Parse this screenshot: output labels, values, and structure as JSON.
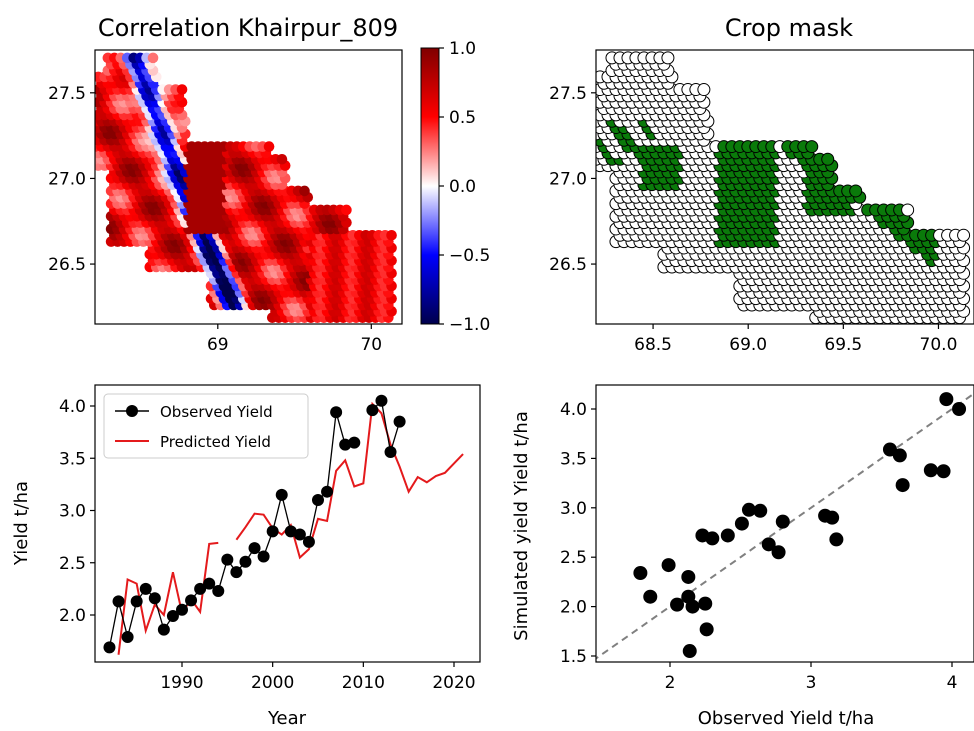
{
  "figure": {
    "panels": [
      {
        "id": "correlation",
        "title": "Correlation Khairpur_809",
        "xticks": [
          "69",
          "70"
        ],
        "yticks": [
          "27.5",
          "27.0",
          "26.5"
        ],
        "colorbar_ticks": [
          "1.0",
          "0.5",
          "0.0",
          "−0.5",
          "−1.0"
        ]
      },
      {
        "id": "crop-mask",
        "title": "Crop mask",
        "xticks": [
          "68.5",
          "69.0",
          "69.5",
          "70.0"
        ],
        "yticks": [
          "27.5",
          "27.0",
          "26.5"
        ]
      },
      {
        "id": "yield-timeseries",
        "xlabel": "Year",
        "ylabel": "Yield t/ha",
        "xticks": [
          "1990",
          "2000",
          "2010",
          "2020"
        ],
        "yticks": [
          "4.0",
          "3.5",
          "3.0",
          "2.5",
          "2.0"
        ],
        "legend": [
          "Observed Yield",
          "Predicted Yield"
        ]
      },
      {
        "id": "scatter",
        "xlabel": "Observed Yield t/ha",
        "ylabel": "Simulated yield Yield t/ha",
        "xticks": [
          "2",
          "3",
          "4"
        ],
        "yticks": [
          "4.0",
          "3.5",
          "3.0",
          "2.5",
          "2.0",
          "1.5"
        ]
      }
    ]
  },
  "colors": {
    "observed": "#000000",
    "predicted": "#e41a1c",
    "crop": "#0a7a0a",
    "noncrop": "#ffffff",
    "identity_line": "#808080"
  },
  "chart_data": [
    {
      "type": "heatmap",
      "title": "Correlation Khairpur_809",
      "xlim": [
        68.2,
        70.2
      ],
      "ylim": [
        26.15,
        27.75
      ],
      "colorbar_range": [
        -1.0,
        1.0
      ],
      "colormap": "seismic",
      "description_regions": "hexagonal grid cells, values in [-1, 1]"
    },
    {
      "type": "scatter",
      "title": "Crop mask",
      "xlim": [
        68.2,
        70.2
      ],
      "ylim": [
        26.15,
        27.75
      ],
      "categories": [
        "non-crop",
        "crop"
      ]
    },
    {
      "type": "line",
      "xlabel": "Year",
      "ylabel": "Yield t/ha",
      "xlim": [
        1981,
        2022
      ],
      "ylim": [
        1.6,
        4.2
      ],
      "series": [
        {
          "name": "Observed Yield",
          "x": [
            1982,
            1983,
            1984,
            1985,
            1986,
            1987,
            1988,
            1989,
            1990,
            1991,
            1992,
            1993,
            1994,
            1995,
            1996,
            1997,
            1998,
            1999,
            2000,
            2001,
            2002,
            2003,
            2004,
            2005,
            2006,
            2007,
            2008,
            2009,
            2010,
            2011,
            2012,
            2013,
            2014
          ],
          "y": [
            1.69,
            2.13,
            1.79,
            2.13,
            2.25,
            2.16,
            1.86,
            1.99,
            2.05,
            2.14,
            2.25,
            2.3,
            2.23,
            2.53,
            2.41,
            2.51,
            2.64,
            2.56,
            2.8,
            3.15,
            2.8,
            2.77,
            2.7,
            3.1,
            3.18,
            3.94,
            3.63,
            3.65,
            null,
            3.96,
            4.05,
            3.56,
            3.85
          ]
        },
        {
          "name": "Predicted Yield",
          "x": [
            1983,
            1984,
            1985,
            1986,
            1987,
            1988,
            1989,
            1990,
            1991,
            1992,
            1993,
            1994,
            null,
            1996,
            1997,
            1998,
            1999,
            2000,
            2001,
            2002,
            2003,
            2004,
            2005,
            2006,
            2007,
            2008,
            2009,
            2010,
            2011,
            2012,
            2013,
            2014,
            2015,
            2016,
            2017,
            2018,
            2019,
            2020,
            2021
          ],
          "y": [
            1.62,
            2.34,
            2.3,
            1.85,
            2.1,
            2.0,
            2.41,
            2.02,
            2.15,
            2.03,
            2.68,
            2.69,
            null,
            2.72,
            2.84,
            2.97,
            2.96,
            2.83,
            2.77,
            2.86,
            2.55,
            2.63,
            2.92,
            2.9,
            3.38,
            3.48,
            3.23,
            3.26,
            4.02,
            3.93,
            3.63,
            3.42,
            3.18,
            3.32,
            3.27,
            3.33,
            3.36,
            3.45,
            3.54
          ]
        }
      ]
    },
    {
      "type": "scatter",
      "xlabel": "Observed Yield t/ha",
      "ylabel": "Simulated yield Yield t/ha",
      "xlim": [
        1.45,
        4.25
      ],
      "ylim": [
        1.45,
        4.2
      ],
      "reference_line": "y = x (dashed)",
      "points": [
        [
          1.79,
          2.34
        ],
        [
          1.86,
          2.1
        ],
        [
          1.99,
          2.42
        ],
        [
          2.05,
          2.02
        ],
        [
          2.13,
          2.3
        ],
        [
          2.13,
          2.1
        ],
        [
          2.16,
          2.0
        ],
        [
          2.25,
          2.03
        ],
        [
          2.26,
          1.77
        ],
        [
          2.14,
          1.55
        ],
        [
          2.23,
          2.72
        ],
        [
          2.3,
          2.69
        ],
        [
          2.41,
          2.72
        ],
        [
          2.51,
          2.84
        ],
        [
          2.56,
          2.98
        ],
        [
          2.64,
          2.97
        ],
        [
          2.7,
          2.63
        ],
        [
          2.77,
          2.55
        ],
        [
          2.8,
          2.86
        ],
        [
          3.1,
          2.92
        ],
        [
          3.15,
          2.9
        ],
        [
          3.18,
          2.68
        ],
        [
          3.56,
          3.59
        ],
        [
          3.63,
          3.53
        ],
        [
          3.65,
          3.23
        ],
        [
          3.85,
          3.38
        ],
        [
          3.94,
          3.37
        ],
        [
          3.96,
          4.1
        ],
        [
          4.05,
          4.0
        ]
      ]
    }
  ]
}
